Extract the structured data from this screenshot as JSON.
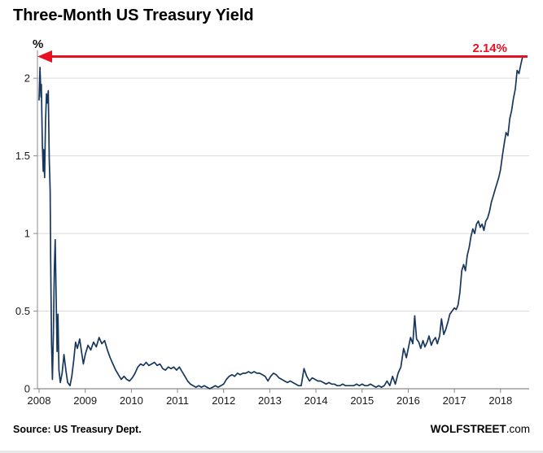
{
  "title": "Three-Month US Treasury Yield",
  "footer": {
    "source": "Source: US Treasury Dept.",
    "brand_bold": "WOLFSTREET",
    "brand_suffix": ".com"
  },
  "chart_data": {
    "type": "line",
    "title": "Three-Month US Treasury Yield",
    "ylabel": "%",
    "xlabel": "",
    "xlim": [
      2008,
      2018.55
    ],
    "ylim": [
      0,
      2.2
    ],
    "x_ticks": [
      2008,
      2009,
      2010,
      2011,
      2012,
      2013,
      2014,
      2015,
      2016,
      2017,
      2018
    ],
    "x_tick_labels": [
      "2008",
      "2009",
      "2010",
      "2011",
      "2012",
      "2013",
      "2014",
      "2015",
      "2016",
      "2017",
      "2018"
    ],
    "y_ticks": [
      0,
      0.5,
      1,
      1.5,
      2
    ],
    "y_tick_labels": [
      "0",
      "0.5",
      "1",
      "1.5",
      "2"
    ],
    "grid": true,
    "grid_color": "#d9d9d9",
    "axis_color": "#8a8a8a",
    "line_color": "#17375e",
    "legend": "none",
    "annotation": {
      "label": "2.14%",
      "value": 2.14,
      "color": "#e81123",
      "style": "horizontal-arrow-left"
    },
    "series": [
      {
        "name": "3-Month US Treasury Yield (%)",
        "points": [
          [
            2008.0,
            1.86
          ],
          [
            2008.02,
            2.07
          ],
          [
            2008.04,
            1.88
          ],
          [
            2008.05,
            1.96
          ],
          [
            2008.07,
            1.58
          ],
          [
            2008.09,
            1.4
          ],
          [
            2008.1,
            1.54
          ],
          [
            2008.12,
            1.36
          ],
          [
            2008.14,
            1.72
          ],
          [
            2008.16,
            1.9
          ],
          [
            2008.18,
            1.84
          ],
          [
            2008.2,
            1.92
          ],
          [
            2008.22,
            1.48
          ],
          [
            2008.24,
            1.28
          ],
          [
            2008.25,
            0.85
          ],
          [
            2008.27,
            0.3
          ],
          [
            2008.29,
            0.06
          ],
          [
            2008.31,
            0.36
          ],
          [
            2008.33,
            0.76
          ],
          [
            2008.35,
            0.96
          ],
          [
            2008.37,
            0.58
          ],
          [
            2008.39,
            0.24
          ],
          [
            2008.41,
            0.48
          ],
          [
            2008.43,
            0.12
          ],
          [
            2008.46,
            0.04
          ],
          [
            2008.5,
            0.1
          ],
          [
            2008.54,
            0.22
          ],
          [
            2008.58,
            0.12
          ],
          [
            2008.62,
            0.04
          ],
          [
            2008.67,
            0.02
          ],
          [
            2008.71,
            0.08
          ],
          [
            2008.75,
            0.18
          ],
          [
            2008.79,
            0.3
          ],
          [
            2008.83,
            0.26
          ],
          [
            2008.88,
            0.32
          ],
          [
            2008.92,
            0.24
          ],
          [
            2008.96,
            0.16
          ],
          [
            2009.0,
            0.22
          ],
          [
            2009.06,
            0.28
          ],
          [
            2009.12,
            0.25
          ],
          [
            2009.18,
            0.3
          ],
          [
            2009.24,
            0.27
          ],
          [
            2009.3,
            0.33
          ],
          [
            2009.36,
            0.29
          ],
          [
            2009.42,
            0.31
          ],
          [
            2009.48,
            0.25
          ],
          [
            2009.54,
            0.2
          ],
          [
            2009.6,
            0.16
          ],
          [
            2009.66,
            0.12
          ],
          [
            2009.72,
            0.09
          ],
          [
            2009.78,
            0.06
          ],
          [
            2009.84,
            0.08
          ],
          [
            2009.9,
            0.06
          ],
          [
            2009.96,
            0.05
          ],
          [
            2010.02,
            0.07
          ],
          [
            2010.08,
            0.1
          ],
          [
            2010.14,
            0.14
          ],
          [
            2010.2,
            0.16
          ],
          [
            2010.26,
            0.15
          ],
          [
            2010.32,
            0.17
          ],
          [
            2010.38,
            0.15
          ],
          [
            2010.44,
            0.16
          ],
          [
            2010.5,
            0.17
          ],
          [
            2010.56,
            0.15
          ],
          [
            2010.62,
            0.16
          ],
          [
            2010.68,
            0.13
          ],
          [
            2010.74,
            0.12
          ],
          [
            2010.8,
            0.14
          ],
          [
            2010.86,
            0.13
          ],
          [
            2010.92,
            0.14
          ],
          [
            2010.98,
            0.12
          ],
          [
            2011.04,
            0.14
          ],
          [
            2011.1,
            0.11
          ],
          [
            2011.16,
            0.08
          ],
          [
            2011.22,
            0.05
          ],
          [
            2011.28,
            0.03
          ],
          [
            2011.34,
            0.02
          ],
          [
            2011.4,
            0.01
          ],
          [
            2011.46,
            0.02
          ],
          [
            2011.52,
            0.01
          ],
          [
            2011.58,
            0.02
          ],
          [
            2011.64,
            0.01
          ],
          [
            2011.7,
            0.0
          ],
          [
            2011.76,
            0.01
          ],
          [
            2011.82,
            0.02
          ],
          [
            2011.88,
            0.01
          ],
          [
            2011.94,
            0.02
          ],
          [
            2012.0,
            0.03
          ],
          [
            2012.06,
            0.06
          ],
          [
            2012.12,
            0.08
          ],
          [
            2012.18,
            0.09
          ],
          [
            2012.24,
            0.08
          ],
          [
            2012.3,
            0.1
          ],
          [
            2012.36,
            0.09
          ],
          [
            2012.42,
            0.1
          ],
          [
            2012.48,
            0.1
          ],
          [
            2012.54,
            0.11
          ],
          [
            2012.6,
            0.1
          ],
          [
            2012.66,
            0.11
          ],
          [
            2012.72,
            0.1
          ],
          [
            2012.78,
            0.1
          ],
          [
            2012.84,
            0.09
          ],
          [
            2012.9,
            0.08
          ],
          [
            2012.96,
            0.05
          ],
          [
            2013.02,
            0.08
          ],
          [
            2013.08,
            0.1
          ],
          [
            2013.14,
            0.09
          ],
          [
            2013.2,
            0.07
          ],
          [
            2013.26,
            0.06
          ],
          [
            2013.32,
            0.05
          ],
          [
            2013.38,
            0.04
          ],
          [
            2013.44,
            0.05
          ],
          [
            2013.5,
            0.04
          ],
          [
            2013.56,
            0.03
          ],
          [
            2013.62,
            0.02
          ],
          [
            2013.68,
            0.02
          ],
          [
            2013.74,
            0.13
          ],
          [
            2013.8,
            0.08
          ],
          [
            2013.86,
            0.05
          ],
          [
            2013.92,
            0.07
          ],
          [
            2013.98,
            0.06
          ],
          [
            2014.04,
            0.05
          ],
          [
            2014.1,
            0.05
          ],
          [
            2014.16,
            0.04
          ],
          [
            2014.22,
            0.03
          ],
          [
            2014.28,
            0.04
          ],
          [
            2014.34,
            0.03
          ],
          [
            2014.4,
            0.03
          ],
          [
            2014.46,
            0.02
          ],
          [
            2014.52,
            0.02
          ],
          [
            2014.58,
            0.03
          ],
          [
            2014.64,
            0.02
          ],
          [
            2014.7,
            0.02
          ],
          [
            2014.76,
            0.02
          ],
          [
            2014.82,
            0.02
          ],
          [
            2014.88,
            0.03
          ],
          [
            2014.94,
            0.02
          ],
          [
            2015.0,
            0.03
          ],
          [
            2015.06,
            0.02
          ],
          [
            2015.12,
            0.02
          ],
          [
            2015.18,
            0.03
          ],
          [
            2015.24,
            0.02
          ],
          [
            2015.3,
            0.01
          ],
          [
            2015.36,
            0.02
          ],
          [
            2015.42,
            0.01
          ],
          [
            2015.48,
            0.02
          ],
          [
            2015.54,
            0.05
          ],
          [
            2015.6,
            0.02
          ],
          [
            2015.66,
            0.08
          ],
          [
            2015.72,
            0.03
          ],
          [
            2015.78,
            0.1
          ],
          [
            2015.84,
            0.14
          ],
          [
            2015.9,
            0.26
          ],
          [
            2015.96,
            0.2
          ],
          [
            2016.0,
            0.26
          ],
          [
            2016.05,
            0.33
          ],
          [
            2016.1,
            0.29
          ],
          [
            2016.14,
            0.47
          ],
          [
            2016.18,
            0.32
          ],
          [
            2016.23,
            0.3
          ],
          [
            2016.27,
            0.26
          ],
          [
            2016.32,
            0.31
          ],
          [
            2016.36,
            0.27
          ],
          [
            2016.41,
            0.3
          ],
          [
            2016.45,
            0.34
          ],
          [
            2016.5,
            0.28
          ],
          [
            2016.54,
            0.31
          ],
          [
            2016.59,
            0.33
          ],
          [
            2016.63,
            0.29
          ],
          [
            2016.68,
            0.34
          ],
          [
            2016.72,
            0.45
          ],
          [
            2016.77,
            0.35
          ],
          [
            2016.81,
            0.38
          ],
          [
            2016.86,
            0.43
          ],
          [
            2016.9,
            0.48
          ],
          [
            2016.95,
            0.5
          ],
          [
            2017.0,
            0.52
          ],
          [
            2017.04,
            0.51
          ],
          [
            2017.08,
            0.54
          ],
          [
            2017.12,
            0.62
          ],
          [
            2017.16,
            0.76
          ],
          [
            2017.2,
            0.8
          ],
          [
            2017.24,
            0.76
          ],
          [
            2017.28,
            0.86
          ],
          [
            2017.32,
            0.91
          ],
          [
            2017.36,
            0.98
          ],
          [
            2017.4,
            1.03
          ],
          [
            2017.44,
            1.0
          ],
          [
            2017.48,
            1.06
          ],
          [
            2017.52,
            1.08
          ],
          [
            2017.56,
            1.04
          ],
          [
            2017.6,
            1.06
          ],
          [
            2017.64,
            1.02
          ],
          [
            2017.68,
            1.08
          ],
          [
            2017.72,
            1.1
          ],
          [
            2017.76,
            1.14
          ],
          [
            2017.8,
            1.2
          ],
          [
            2017.84,
            1.24
          ],
          [
            2017.88,
            1.28
          ],
          [
            2017.92,
            1.32
          ],
          [
            2017.96,
            1.36
          ],
          [
            2018.0,
            1.41
          ],
          [
            2018.04,
            1.5
          ],
          [
            2018.08,
            1.58
          ],
          [
            2018.12,
            1.65
          ],
          [
            2018.16,
            1.63
          ],
          [
            2018.2,
            1.74
          ],
          [
            2018.24,
            1.79
          ],
          [
            2018.28,
            1.87
          ],
          [
            2018.32,
            1.93
          ],
          [
            2018.36,
            2.05
          ],
          [
            2018.4,
            2.03
          ],
          [
            2018.44,
            2.09
          ],
          [
            2018.48,
            2.14
          ]
        ]
      }
    ]
  }
}
